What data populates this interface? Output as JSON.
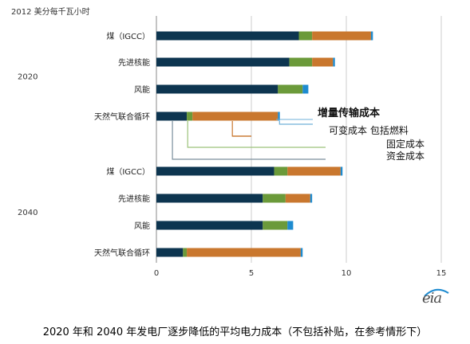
{
  "unit_label": "2012 美分每千瓦小时",
  "caption": "2020 年和 2040 年发电厂逐步降低的平均电力成本（不包括补贴，在参考情形下）",
  "logo_text": "eia",
  "colors": {
    "capital": "#0d3550",
    "fixed": "#6b9a3a",
    "variable": "#c9772e",
    "transmission": "#1e8bd0",
    "grid": "#cccccc",
    "axis": "#888888"
  },
  "chart_data": {
    "type": "bar",
    "orientation": "horizontal",
    "stacked": true,
    "xlim": [
      0,
      15
    ],
    "xticks": [
      "0",
      "5",
      "10",
      "15"
    ],
    "grid": true,
    "groups": [
      {
        "label": "2020",
        "bars": [
          {
            "category": "煤（IGCC）",
            "capital": 7.5,
            "fixed": 0.7,
            "variable": 3.1,
            "transmission": 0.1
          },
          {
            "category": "先进核能",
            "capital": 7.0,
            "fixed": 1.2,
            "variable": 1.1,
            "transmission": 0.1
          },
          {
            "category": "风能",
            "capital": 6.4,
            "fixed": 1.3,
            "variable": 0.0,
            "transmission": 0.3
          },
          {
            "category": "天然气联合循环",
            "capital": 1.6,
            "fixed": 0.3,
            "variable": 4.5,
            "transmission": 0.1
          }
        ]
      },
      {
        "label": "2040",
        "bars": [
          {
            "category": "煤（IGCC）",
            "capital": 6.2,
            "fixed": 0.7,
            "variable": 2.8,
            "transmission": 0.1
          },
          {
            "category": "先进核能",
            "capital": 5.6,
            "fixed": 1.2,
            "variable": 1.3,
            "transmission": 0.1
          },
          {
            "category": "风能",
            "capital": 5.6,
            "fixed": 1.3,
            "variable": 0.0,
            "transmission": 0.3
          },
          {
            "category": "天然气联合循环",
            "capital": 1.4,
            "fixed": 0.2,
            "variable": 6.0,
            "transmission": 0.1
          }
        ]
      }
    ],
    "legend_annotations": [
      {
        "key": "transmission",
        "text": "增量传输成本"
      },
      {
        "key": "variable",
        "text": "可变成本  包括燃料"
      },
      {
        "key": "fixed",
        "text": "固定成本"
      },
      {
        "key": "capital",
        "text": "资金成本"
      }
    ]
  }
}
